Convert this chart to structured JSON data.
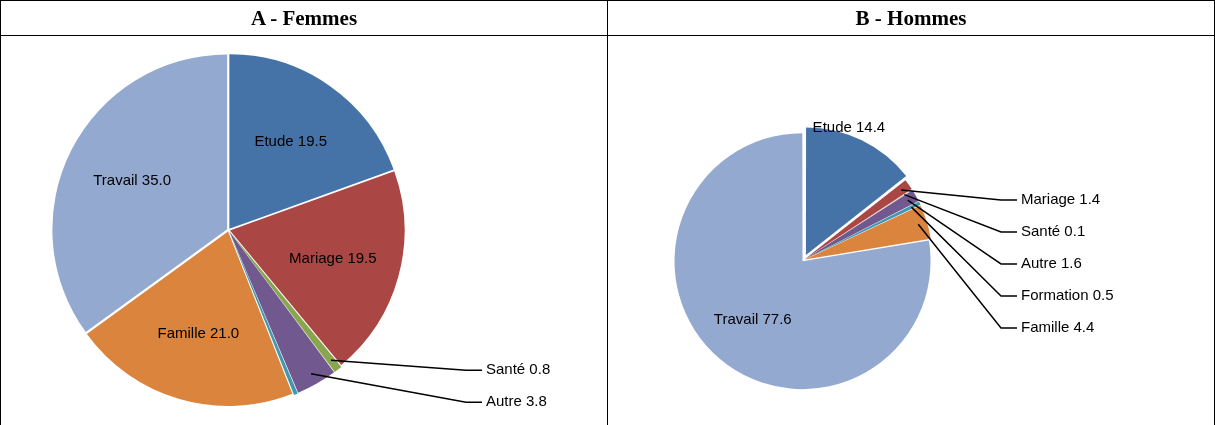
{
  "chart_data": [
    {
      "type": "pie",
      "title": "A - Femmes",
      "categories": [
        "Etude",
        "Mariage",
        "Santé",
        "Autre",
        null,
        "Famille",
        "Travail"
      ],
      "values": [
        19.5,
        19.5,
        0.8,
        3.8,
        0.4,
        21.0,
        35.0
      ],
      "value_labels": [
        "19.5",
        "19.5",
        "0.8",
        "3.8",
        null,
        "21.0",
        "35.0"
      ],
      "colors": [
        "#4572a7",
        "#aa4643",
        "#89a54e",
        "#71588f",
        "#4198af",
        "#db843d",
        "#93a9cf"
      ],
      "legend": false
    },
    {
      "type": "pie",
      "title": "B - Hommes",
      "categories": [
        "Etude",
        "Mariage",
        "Santé",
        "Autre",
        "Formation",
        "Famille",
        "Travail"
      ],
      "values": [
        14.4,
        1.4,
        0.1,
        1.6,
        0.5,
        4.4,
        77.6
      ],
      "value_labels": [
        "14.4",
        "1.4",
        "0.1",
        "1.6",
        "0.5",
        "4.4",
        "77.6"
      ],
      "colors": [
        "#4572a7",
        "#aa4643",
        "#89a54e",
        "#71588f",
        "#4198af",
        "#db843d",
        "#93a9cf"
      ],
      "legend": false
    }
  ]
}
